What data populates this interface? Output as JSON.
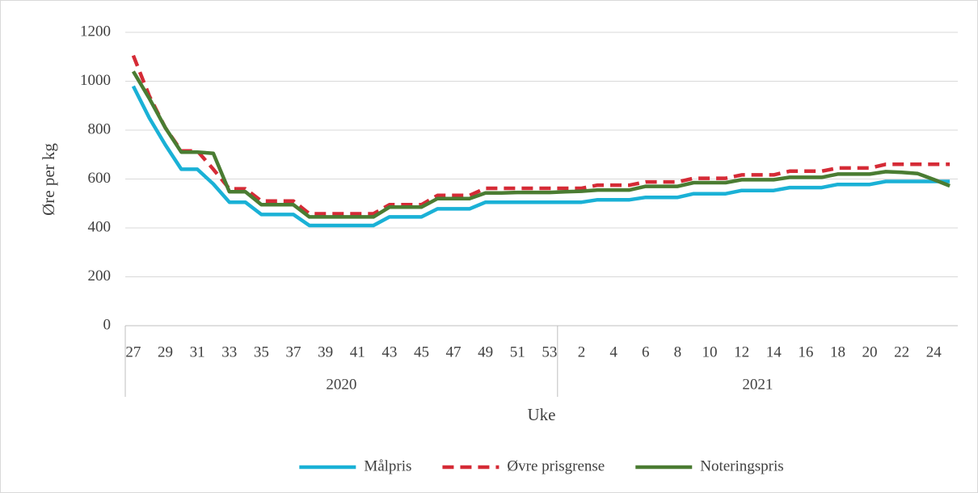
{
  "chart_data": {
    "type": "line",
    "y_label": "Øre per kg",
    "x_label": "Uke",
    "categories": [
      27,
      null,
      29,
      null,
      31,
      null,
      33,
      null,
      35,
      null,
      37,
      null,
      39,
      null,
      41,
      null,
      43,
      null,
      45,
      null,
      47,
      null,
      49,
      null,
      51,
      null,
      53,
      null,
      2,
      null,
      4,
      null,
      6,
      null,
      8,
      null,
      10,
      null,
      12,
      null,
      14,
      null,
      16,
      null,
      18,
      null,
      20,
      null,
      22,
      null,
      24,
      null
    ],
    "groups": [
      {
        "name": "2020",
        "count": 27
      },
      {
        "name": "2021",
        "count": 25
      }
    ],
    "series": [
      {
        "name": "Målpris",
        "color": "#1ab1d6",
        "dash": false,
        "values": [
          980,
          850,
          740,
          640,
          640,
          580,
          505,
          505,
          455,
          455,
          455,
          410,
          410,
          410,
          410,
          410,
          445,
          445,
          445,
          478,
          478,
          478,
          505,
          505,
          505,
          505,
          505,
          505,
          505,
          515,
          515,
          515,
          525,
          525,
          525,
          540,
          540,
          540,
          553,
          553,
          553,
          565,
          565,
          565,
          578,
          578,
          578,
          590,
          590,
          590,
          590,
          590
        ]
      },
      {
        "name": "Øvre prisgrense",
        "color": "#d52b36",
        "dash": true,
        "values": [
          1105,
          940,
          810,
          715,
          715,
          640,
          560,
          560,
          510,
          510,
          510,
          458,
          458,
          458,
          458,
          458,
          495,
          495,
          495,
          533,
          533,
          533,
          562,
          562,
          562,
          562,
          562,
          562,
          562,
          575,
          575,
          575,
          588,
          588,
          588,
          603,
          603,
          603,
          617,
          617,
          617,
          632,
          632,
          632,
          645,
          645,
          645,
          660,
          660,
          660,
          660,
          660
        ]
      },
      {
        "name": "Noteringspris",
        "color": "#4a7c32",
        "dash": false,
        "values": [
          1040,
          930,
          810,
          710,
          710,
          705,
          548,
          548,
          495,
          495,
          495,
          445,
          445,
          445,
          445,
          445,
          485,
          485,
          485,
          520,
          520,
          520,
          543,
          543,
          545,
          545,
          545,
          548,
          550,
          555,
          555,
          555,
          570,
          570,
          570,
          585,
          585,
          585,
          597,
          597,
          597,
          607,
          607,
          607,
          620,
          620,
          620,
          630,
          627,
          622,
          598,
          572
        ]
      }
    ],
    "ylim": [
      0,
      1200
    ],
    "yticks": [
      0,
      200,
      400,
      600,
      800,
      1000,
      1200
    ],
    "grid": true,
    "legend": "bottom"
  }
}
